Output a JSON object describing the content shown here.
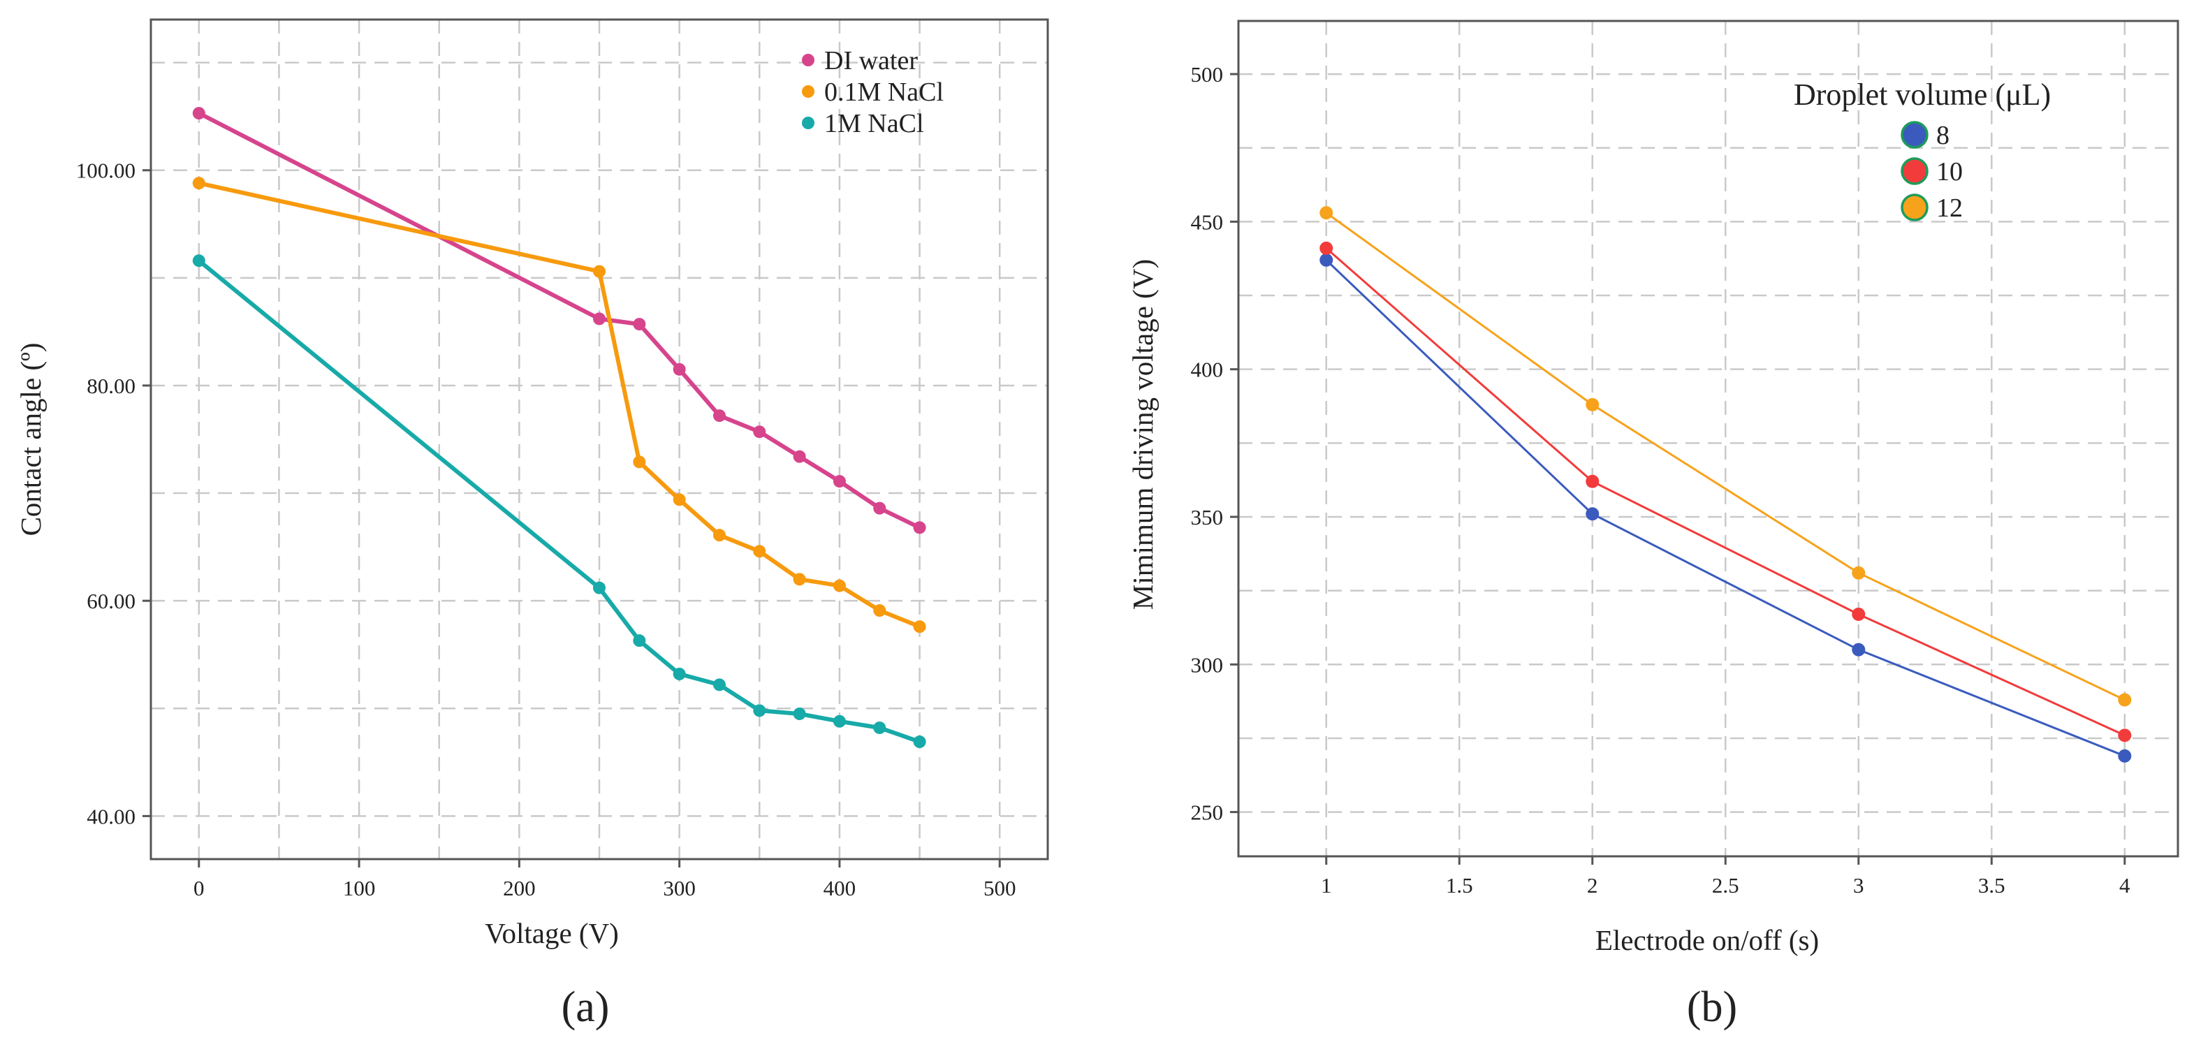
{
  "chart_data": [
    {
      "type": "line",
      "panel_label": "(a)",
      "title": "",
      "xlabel": "Voltage (V)",
      "ylabel": "Contact angle (º)",
      "xlim": [
        -30,
        530
      ],
      "ylim": [
        36,
        114
      ],
      "grid": true,
      "legend_position": "top-right",
      "x_ticks": [
        0,
        100,
        200,
        300,
        400,
        500
      ],
      "x_tick_labels": [
        "0",
        "100",
        "200",
        "300",
        "400",
        "500"
      ],
      "y_ticks": [
        40,
        60,
        80,
        100
      ],
      "y_tick_labels": [
        "40.00",
        "60.00",
        "80.00",
        "100.00"
      ],
      "x_grid": [
        0,
        50,
        100,
        150,
        200,
        250,
        300,
        350,
        400,
        450,
        500
      ],
      "y_grid": [
        40,
        50,
        60,
        70,
        80,
        90,
        100,
        110
      ],
      "series": [
        {
          "name": "DI water",
          "color": "#d6448c",
          "x": [
            0,
            250,
            275,
            300,
            325,
            350,
            375,
            400,
            425,
            450
          ],
          "values": [
            105.3,
            86.2,
            85.7,
            81.5,
            77.2,
            75.7,
            73.4,
            71.1,
            68.6,
            66.8
          ]
        },
        {
          "name": "0.1M NaCl",
          "color": "#f79a0e",
          "x": [
            0,
            250,
            275,
            300,
            325,
            350,
            375,
            400,
            425,
            450
          ],
          "values": [
            98.8,
            90.6,
            72.9,
            69.4,
            66.1,
            64.6,
            62.0,
            61.4,
            59.1,
            57.6
          ]
        },
        {
          "name": "1M NaCl",
          "color": "#17aaa8",
          "x": [
            0,
            250,
            275,
            300,
            325,
            350,
            375,
            400,
            425,
            450
          ],
          "values": [
            91.6,
            61.2,
            56.3,
            53.2,
            52.2,
            49.8,
            49.5,
            48.8,
            48.2,
            46.9
          ]
        }
      ]
    },
    {
      "type": "line",
      "panel_label": "(b)",
      "title": "",
      "xlabel": "Electrode on/off (s)",
      "ylabel": "Mimimum driving voltage (V)",
      "legend_title": "Droplet volume (μL)",
      "legend_position": "top-right",
      "xlim": [
        0.67,
        4.2
      ],
      "ylim": [
        235,
        518
      ],
      "grid": true,
      "x_ticks": [
        1,
        1.5,
        2,
        2.5,
        3,
        3.5,
        4
      ],
      "x_tick_labels": [
        "1",
        "1.5",
        "2",
        "2.5",
        "3",
        "3.5",
        "4"
      ],
      "y_ticks": [
        250,
        300,
        350,
        400,
        450,
        500
      ],
      "y_tick_labels": [
        "250",
        "300",
        "350",
        "400",
        "450",
        "500"
      ],
      "x_grid": [
        1,
        1.5,
        2,
        2.5,
        3,
        3.5,
        4
      ],
      "y_grid": [
        250,
        275,
        300,
        325,
        350,
        375,
        400,
        425,
        450,
        475,
        500
      ],
      "series": [
        {
          "name": "8",
          "color": "#3a5bbd",
          "legend_edge": "#1d9c5a",
          "x": [
            1,
            2,
            3,
            4
          ],
          "values": [
            437,
            351,
            305,
            269
          ]
        },
        {
          "name": "10",
          "color": "#f23b3b",
          "legend_edge": "#1d9c5a",
          "x": [
            1,
            2,
            3,
            4
          ],
          "values": [
            441,
            362,
            317,
            276
          ]
        },
        {
          "name": "12",
          "color": "#f7a21b",
          "legend_edge": "#1d9c5a",
          "x": [
            1,
            2,
            3,
            4
          ],
          "values": [
            453,
            388,
            331,
            288
          ]
        }
      ]
    }
  ]
}
